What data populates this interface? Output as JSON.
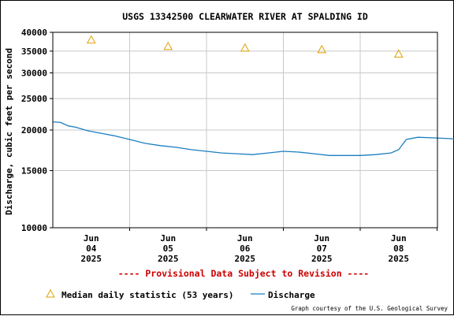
{
  "chart_data": {
    "type": "line",
    "title": "USGS 13342500 CLEARWATER RIVER AT SPALDING ID",
    "ylabel": "Discharge, cubic feet per second",
    "y_scale": "log",
    "ylim": [
      10000,
      40000
    ],
    "y_ticks": [
      "10000",
      "15000",
      "20000",
      "25000",
      "30000",
      "35000",
      "40000"
    ],
    "x_ticks": [
      {
        "month": "Jun",
        "day": "04",
        "year": "2025"
      },
      {
        "month": "Jun",
        "day": "05",
        "year": "2025"
      },
      {
        "month": "Jun",
        "day": "06",
        "year": "2025"
      },
      {
        "month": "Jun",
        "day": "07",
        "year": "2025"
      },
      {
        "month": "Jun",
        "day": "08",
        "year": "2025"
      }
    ],
    "grid": true,
    "colors": {
      "discharge": "#1a7ec0",
      "median": "#e0a000",
      "provisional": "#cc0000"
    },
    "series": [
      {
        "name": "Discharge",
        "style": "line",
        "x_days": [
          0.0,
          0.1,
          0.2,
          0.3,
          0.45,
          0.6,
          0.8,
          1.0,
          1.2,
          1.4,
          1.6,
          1.8,
          2.0,
          2.2,
          2.4,
          2.6,
          2.8,
          3.0,
          3.2,
          3.4,
          3.6,
          3.8,
          4.0,
          4.2,
          4.4,
          4.5,
          4.6,
          4.75,
          5.0,
          5.2,
          5.35,
          5.5,
          5.6
        ],
        "values": [
          21200,
          21100,
          20600,
          20400,
          19900,
          19600,
          19200,
          18700,
          18200,
          17900,
          17700,
          17400,
          17200,
          17000,
          16900,
          16800,
          17000,
          17200,
          17100,
          16900,
          16700,
          16700,
          16700,
          16800,
          17000,
          17400,
          18700,
          19000,
          18900,
          18800,
          18800,
          19000,
          19200
        ]
      },
      {
        "name": "Median daily statistic (53 years)",
        "style": "triangle",
        "x_days": [
          0.5,
          1.5,
          2.5,
          3.5,
          4.5
        ],
        "values": [
          37900,
          36200,
          35800,
          35400,
          34300
        ]
      }
    ]
  },
  "provisional_text": "---- Provisional Data Subject to Revision ----",
  "legend": {
    "median_label": "Median daily statistic (53 years)",
    "discharge_label": "Discharge"
  },
  "credit": "Graph courtesy of the U.S. Geological Survey"
}
